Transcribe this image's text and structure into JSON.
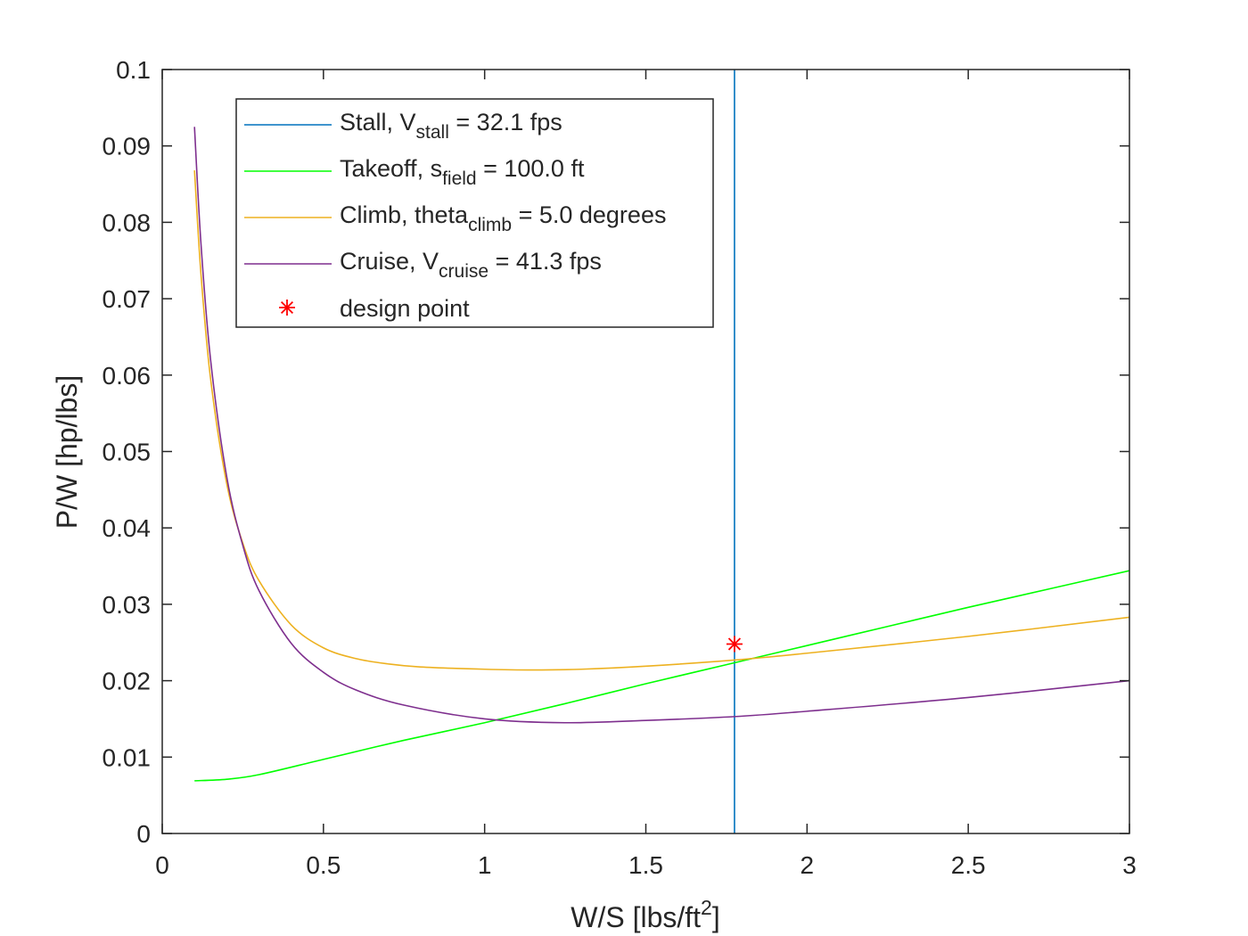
{
  "chart_data": {
    "type": "line",
    "xlabel": "W/S [lbs/ft",
    "xlabel_sup": "2",
    "xlabel_suffix": "]",
    "ylabel": "P/W [hp/lbs]",
    "xlim": [
      0,
      3
    ],
    "ylim": [
      0,
      0.1
    ],
    "x_ticks": [
      0,
      0.5,
      1,
      1.5,
      2,
      2.5,
      3
    ],
    "x_tick_labels": [
      "0",
      "0.5",
      "1",
      "1.5",
      "2",
      "2.5",
      "3"
    ],
    "y_ticks": [
      0,
      0.01,
      0.02,
      0.03,
      0.04,
      0.05,
      0.06,
      0.07,
      0.08,
      0.09,
      0.1
    ],
    "y_tick_labels": [
      "0",
      "0.01",
      "0.02",
      "0.03",
      "0.04",
      "0.05",
      "0.06",
      "0.07",
      "0.08",
      "0.09",
      "0.1"
    ],
    "grid": false,
    "legend_position": "top-left",
    "series": [
      {
        "key": "stall",
        "kind": "vertical",
        "x_value": 1.775,
        "color": "#0072BD",
        "label": "Stall, V",
        "label_sub": "stall",
        "label_suffix": " = 32.1 fps"
      },
      {
        "key": "takeoff",
        "kind": "line",
        "color": "#00FF00",
        "label": "Takeoff, s",
        "label_sub": "field",
        "label_suffix": " = 100.0 ft",
        "x": [
          0.1,
          0.2,
          0.3,
          0.5,
          0.75,
          1.0,
          1.25,
          1.5,
          1.75,
          2.0,
          2.25,
          2.5,
          2.75,
          3.0
        ],
        "y": [
          0.0069,
          0.0071,
          0.0077,
          0.0097,
          0.0122,
          0.0145,
          0.017,
          0.0196,
          0.0221,
          0.0246,
          0.0271,
          0.0296,
          0.032,
          0.0344
        ]
      },
      {
        "key": "climb",
        "kind": "line",
        "color": "#EDB120",
        "label": "Climb, theta",
        "label_sub": "climb",
        "label_suffix": " = 5.0 degrees",
        "x": [
          0.1,
          0.12,
          0.15,
          0.2,
          0.25,
          0.3,
          0.4,
          0.5,
          0.6,
          0.7,
          0.8,
          1.0,
          1.15,
          1.3,
          1.5,
          1.775,
          2.0,
          2.5,
          3.0
        ],
        "y": [
          0.0868,
          0.0733,
          0.0595,
          0.0458,
          0.038,
          0.0331,
          0.0273,
          0.0243,
          0.0229,
          0.0222,
          0.0218,
          0.0215,
          0.0214,
          0.0215,
          0.0219,
          0.0227,
          0.0236,
          0.0258,
          0.0283
        ]
      },
      {
        "key": "cruise",
        "kind": "line",
        "color": "#7E2F8E",
        "label": "Cruise, V",
        "label_sub": "cruise",
        "label_suffix": " = 41.3 fps",
        "x": [
          0.1,
          0.12,
          0.15,
          0.2,
          0.25,
          0.3,
          0.4,
          0.5,
          0.6,
          0.75,
          1.0,
          1.25,
          1.5,
          1.775,
          2.0,
          2.5,
          3.0
        ],
        "y": [
          0.0925,
          0.0773,
          0.062,
          0.0467,
          0.0377,
          0.0318,
          0.0249,
          0.0211,
          0.0188,
          0.0168,
          0.015,
          0.0145,
          0.0148,
          0.0153,
          0.016,
          0.0178,
          0.02
        ]
      }
    ],
    "design_point": {
      "label": "design point",
      "x": 1.775,
      "y": 0.0248,
      "color": "#FF0000",
      "marker": "asterisk"
    }
  }
}
